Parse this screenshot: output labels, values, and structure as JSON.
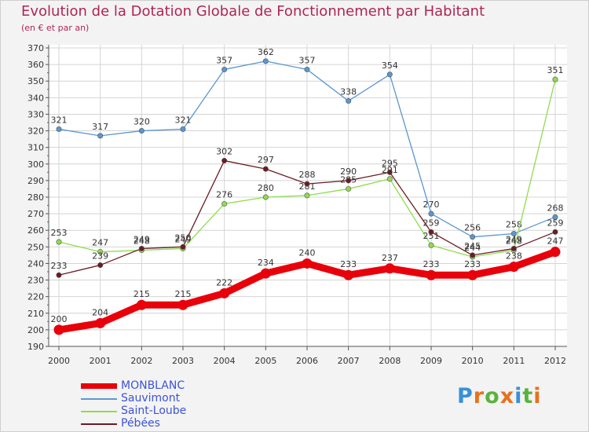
{
  "header": {
    "title": "Evolution de la Dotation Globale de Fonctionnement par Habitant",
    "subtitle": "(en € et par an)"
  },
  "logo": {
    "text": "Proxiti",
    "letters": [
      "P",
      "r",
      "o",
      "x",
      "i",
      "t",
      "i"
    ]
  },
  "colors": {
    "title": "#b02553",
    "legend_text": "#3d53d8",
    "background": "#f3f3f3",
    "grid": "#d4d4d4",
    "logo": [
      "#3a8fd6",
      "#e8701c",
      "#5ab33c",
      "#e8701c",
      "#3a8fd6",
      "#5ab33c",
      "#e8701c"
    ]
  },
  "chart_data": {
    "type": "line",
    "title": "Evolution de la Dotation Globale de Fonctionnement par Habitant",
    "subtitle": "(en € et par an)",
    "xlabel": "",
    "ylabel": "",
    "ylim": [
      190,
      370
    ],
    "y_ticks": [
      190,
      200,
      210,
      220,
      230,
      240,
      250,
      260,
      270,
      280,
      290,
      300,
      310,
      320,
      330,
      340,
      350,
      360,
      370
    ],
    "grid": true,
    "legend_position": "bottom-left",
    "categories": [
      "2000",
      "2001",
      "2002",
      "2003",
      "2004",
      "2005",
      "2006",
      "2007",
      "2008",
      "2009",
      "2010",
      "2011",
      "2012"
    ],
    "series": [
      {
        "name": "MONBLANC",
        "color": "#e8000a",
        "values": [
          200,
          204,
          215,
          215,
          222,
          234,
          240,
          233,
          237,
          233,
          233,
          238,
          247
        ]
      },
      {
        "name": "Sauvimont",
        "color": "#5b97cf",
        "values": [
          321,
          317,
          320,
          321,
          357,
          362,
          357,
          338,
          354,
          270,
          256,
          258,
          268
        ]
      },
      {
        "name": "Saint-Loube",
        "color": "#8fdc4f",
        "values": [
          253,
          247,
          248,
          249,
          276,
          280,
          281,
          285,
          291,
          251,
          244,
          248,
          351
        ]
      },
      {
        "name": "Pébées",
        "color": "#6a1c22",
        "values": [
          233,
          239,
          249,
          250,
          302,
          297,
          288,
          290,
          295,
          259,
          245,
          249,
          259
        ]
      }
    ]
  }
}
